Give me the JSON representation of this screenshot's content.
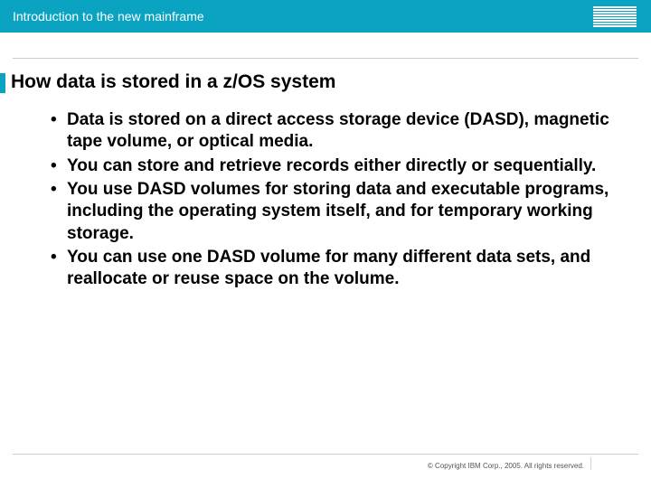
{
  "colors": {
    "header_bg": "#0aa3c2",
    "accent": "#0aa3c2",
    "rule": "#c9ced2"
  },
  "header": {
    "title": "Introduction to the new mainframe",
    "logo_alt": "IBM"
  },
  "slide": {
    "title": "How data is stored in a z/OS system",
    "bullets": [
      "Data is stored on a direct access storage device (DASD), magnetic tape volume, or optical media.",
      "You can store and retrieve records either directly or sequentially.",
      "You use DASD volumes for storing data and executable programs, including the operating system itself, and for temporary working storage.",
      "You can use one DASD volume for many different data sets, and reallocate or reuse space on the volume."
    ]
  },
  "footer": {
    "copyright": "© Copyright IBM Corp., 2005. All rights reserved."
  }
}
